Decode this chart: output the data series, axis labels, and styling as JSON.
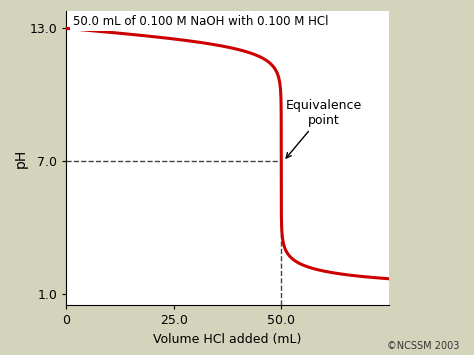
{
  "title": "50.0 mL of 0.100 M NaOH with 0.100 M HCl",
  "xlabel": "Volume HCl added (mL)",
  "ylabel": "pH",
  "xlim": [
    0,
    75
  ],
  "ylim": [
    0.5,
    13.8
  ],
  "xticks": [
    0,
    25.0,
    50.0
  ],
  "ytick_values": [
    1.0,
    7.0,
    13.0
  ],
  "ytick_labels": [
    "1.0",
    "7.0",
    "13.0"
  ],
  "equivalence_x": 50.0,
  "equivalence_y": 7.0,
  "eq_label": "Equivalence\npoint",
  "curve_color": "#cc0000",
  "dashes_color": "#444444",
  "background_color": "#d4d4bc",
  "plot_bg_color": "#f5f5ee",
  "copyright": "©NCSSM 2003",
  "curve_linewidth": 2.2,
  "V_total_NaOH": 50.0,
  "C_NaOH": 0.1,
  "C_HCl": 0.1
}
